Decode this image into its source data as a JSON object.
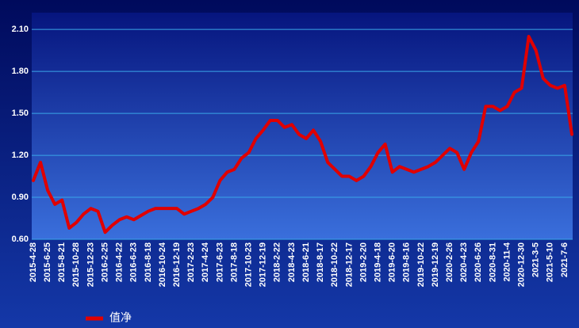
{
  "chart_data": {
    "type": "line",
    "categories": [
      "2015-4-28",
      null,
      "2015-6-25",
      null,
      "2015-8-21",
      null,
      "2015-10-28",
      null,
      "2015-12-23",
      null,
      "2016-2-25",
      null,
      "2016-4-22",
      null,
      "2016-6-23",
      null,
      "2016-8-18",
      null,
      "2016-10-24",
      null,
      "2016-12-19",
      null,
      "2017-2-23",
      null,
      "2017-4-24",
      null,
      "2017-6-23",
      null,
      "2017-8-18",
      null,
      "2017-10-23",
      null,
      "2017-12-19",
      null,
      "2018-2-22",
      null,
      "2018-4-23",
      null,
      "2018-6-21",
      null,
      "2018-8-17",
      null,
      "2018-10-22",
      null,
      "2018-12-17",
      null,
      "2019-2-20",
      null,
      "2019-4-18",
      null,
      "2019-6-20",
      null,
      "2019-8-16",
      null,
      "2019-10-22",
      null,
      "2019-12-19",
      null,
      "2020-2-26",
      null,
      "2020-4-23",
      null,
      "2020-6-26",
      null,
      "2020-8-31",
      null,
      "2020-11-4",
      null,
      "2020-12-30",
      null,
      "2021-3-5",
      null,
      "2021-5-10",
      null,
      "2021-7-6",
      null
    ],
    "series": [
      {
        "name": "值净",
        "color": "#e00000",
        "values": [
          1.02,
          1.15,
          0.95,
          0.85,
          0.88,
          0.68,
          0.72,
          0.78,
          0.82,
          0.8,
          0.65,
          0.7,
          0.74,
          0.76,
          0.74,
          0.77,
          0.8,
          0.82,
          0.82,
          0.82,
          0.82,
          0.78,
          0.8,
          0.82,
          0.85,
          0.9,
          1.02,
          1.08,
          1.1,
          1.18,
          1.22,
          1.32,
          1.38,
          1.45,
          1.45,
          1.4,
          1.42,
          1.35,
          1.32,
          1.38,
          1.3,
          1.15,
          1.1,
          1.05,
          1.05,
          1.02,
          1.05,
          1.12,
          1.22,
          1.28,
          1.08,
          1.12,
          1.1,
          1.08,
          1.1,
          1.12,
          1.15,
          1.2,
          1.25,
          1.22,
          1.1,
          1.22,
          1.3,
          1.55,
          1.55,
          1.52,
          1.55,
          1.65,
          1.68,
          2.05,
          1.95,
          1.75,
          1.7,
          1.68,
          1.7,
          1.35
        ]
      }
    ],
    "ylim": [
      0.6,
      2.22
    ],
    "yticks": [
      {
        "value": 0.6,
        "label": "0.60"
      },
      {
        "value": 0.9,
        "label": "0.90"
      },
      {
        "value": 1.2,
        "label": "1.20"
      },
      {
        "value": 1.5,
        "label": "1.50"
      },
      {
        "value": 1.8,
        "label": "1.80"
      },
      {
        "value": 2.1,
        "label": "2.10"
      }
    ],
    "grid": true
  }
}
